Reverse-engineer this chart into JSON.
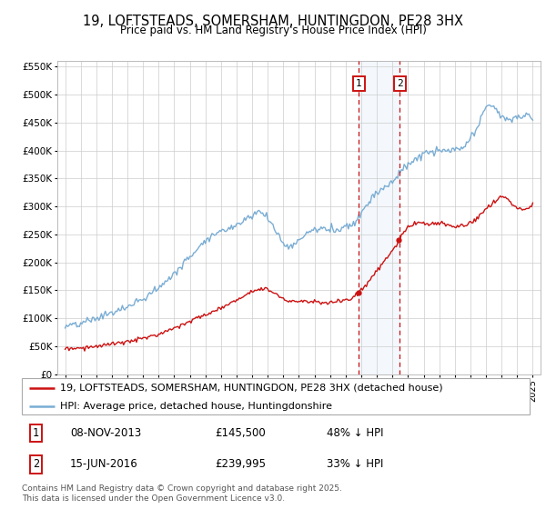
{
  "title": "19, LOFTSTEADS, SOMERSHAM, HUNTINGDON, PE28 3HX",
  "subtitle": "Price paid vs. HM Land Registry's House Price Index (HPI)",
  "ylabel_ticks": [
    "£0",
    "£50K",
    "£100K",
    "£150K",
    "£200K",
    "£250K",
    "£300K",
    "£350K",
    "£400K",
    "£450K",
    "£500K",
    "£550K"
  ],
  "ytick_values": [
    0,
    50000,
    100000,
    150000,
    200000,
    250000,
    300000,
    350000,
    400000,
    450000,
    500000,
    550000
  ],
  "hpi_color": "#7aadd4",
  "price_color": "#cc1111",
  "transaction1_date": "08-NOV-2013",
  "transaction1_price": 145500,
  "transaction1_note": "48% ↓ HPI",
  "transaction2_date": "15-JUN-2016",
  "transaction2_price": 239995,
  "transaction2_note": "33% ↓ HPI",
  "legend_label1": "19, LOFTSTEADS, SOMERSHAM, HUNTINGDON, PE28 3HX (detached house)",
  "legend_label2": "HPI: Average price, detached house, Huntingdonshire",
  "footer": "Contains HM Land Registry data © Crown copyright and database right 2025.\nThis data is licensed under the Open Government Licence v3.0.",
  "background_color": "#ffffff",
  "plot_bg_color": "#ffffff",
  "grid_color": "#cccccc",
  "hpi_years": [
    1995.0,
    1995.08,
    1995.17,
    1995.25,
    1995.33,
    1995.42,
    1995.5,
    1995.58,
    1995.67,
    1995.75,
    1995.83,
    1995.92,
    1996.0,
    1996.08,
    1996.17,
    1996.25,
    1996.33,
    1996.42,
    1996.5,
    1996.58,
    1996.67,
    1996.75,
    1996.83,
    1996.92,
    1997.0,
    1997.08,
    1997.17,
    1997.25,
    1997.33,
    1997.42,
    1997.5,
    1997.58,
    1997.67,
    1997.75,
    1997.83,
    1997.92,
    1998.0,
    1998.08,
    1998.17,
    1998.25,
    1998.33,
    1998.42,
    1998.5,
    1998.58,
    1998.67,
    1998.75,
    1998.83,
    1998.92,
    1999.0,
    1999.08,
    1999.17,
    1999.25,
    1999.33,
    1999.42,
    1999.5,
    1999.58,
    1999.67,
    1999.75,
    1999.83,
    1999.92,
    2000.0,
    2000.08,
    2000.17,
    2000.25,
    2000.33,
    2000.42,
    2000.5,
    2000.58,
    2000.67,
    2000.75,
    2000.83,
    2000.92,
    2001.0,
    2001.08,
    2001.17,
    2001.25,
    2001.33,
    2001.42,
    2001.5,
    2001.58,
    2001.67,
    2001.75,
    2001.83,
    2001.92,
    2002.0,
    2002.08,
    2002.17,
    2002.25,
    2002.33,
    2002.42,
    2002.5,
    2002.58,
    2002.67,
    2002.75,
    2002.83,
    2002.92,
    2003.0,
    2003.08,
    2003.17,
    2003.25,
    2003.33,
    2003.42,
    2003.5,
    2003.58,
    2003.67,
    2003.75,
    2003.83,
    2003.92,
    2004.0,
    2004.08,
    2004.17,
    2004.25,
    2004.33,
    2004.42,
    2004.5,
    2004.58,
    2004.67,
    2004.75,
    2004.83,
    2004.92,
    2005.0,
    2005.08,
    2005.17,
    2005.25,
    2005.33,
    2005.42,
    2005.5,
    2005.58,
    2005.67,
    2005.75,
    2005.83,
    2005.92,
    2006.0,
    2006.08,
    2006.17,
    2006.25,
    2006.33,
    2006.42,
    2006.5,
    2006.58,
    2006.67,
    2006.75,
    2006.83,
    2006.92,
    2007.0,
    2007.08,
    2007.17,
    2007.25,
    2007.33,
    2007.42,
    2007.5,
    2007.58,
    2007.67,
    2007.75,
    2007.83,
    2007.92,
    2008.0,
    2008.08,
    2008.17,
    2008.25,
    2008.33,
    2008.42,
    2008.5,
    2008.58,
    2008.67,
    2008.75,
    2008.83,
    2008.92,
    2009.0,
    2009.08,
    2009.17,
    2009.25,
    2009.33,
    2009.42,
    2009.5,
    2009.58,
    2009.67,
    2009.75,
    2009.83,
    2009.92,
    2010.0,
    2010.08,
    2010.17,
    2010.25,
    2010.33,
    2010.42,
    2010.5,
    2010.58,
    2010.67,
    2010.75,
    2010.83,
    2010.92,
    2011.0,
    2011.08,
    2011.17,
    2011.25,
    2011.33,
    2011.42,
    2011.5,
    2011.58,
    2011.67,
    2011.75,
    2011.83,
    2011.92,
    2012.0,
    2012.08,
    2012.17,
    2012.25,
    2012.33,
    2012.42,
    2012.5,
    2012.58,
    2012.67,
    2012.75,
    2012.83,
    2012.92,
    2013.0,
    2013.08,
    2013.17,
    2013.25,
    2013.33,
    2013.42,
    2013.5,
    2013.58,
    2013.67,
    2013.75,
    2013.83,
    2013.92,
    2014.0,
    2014.08,
    2014.17,
    2014.25,
    2014.33,
    2014.42,
    2014.5,
    2014.58,
    2014.67,
    2014.75,
    2014.83,
    2014.92,
    2015.0,
    2015.08,
    2015.17,
    2015.25,
    2015.33,
    2015.42,
    2015.5,
    2015.58,
    2015.67,
    2015.75,
    2015.83,
    2015.92,
    2016.0,
    2016.08,
    2016.17,
    2016.25,
    2016.33,
    2016.42,
    2016.5,
    2016.58,
    2016.67,
    2016.75,
    2016.83,
    2016.92,
    2017.0,
    2017.08,
    2017.17,
    2017.25,
    2017.33,
    2017.42,
    2017.5,
    2017.58,
    2017.67,
    2017.75,
    2017.83,
    2017.92,
    2018.0,
    2018.08,
    2018.17,
    2018.25,
    2018.33,
    2018.42,
    2018.5,
    2018.58,
    2018.67,
    2018.75,
    2018.83,
    2018.92,
    2019.0,
    2019.08,
    2019.17,
    2019.25,
    2019.33,
    2019.42,
    2019.5,
    2019.58,
    2019.67,
    2019.75,
    2019.83,
    2019.92,
    2020.0,
    2020.08,
    2020.17,
    2020.25,
    2020.33,
    2020.42,
    2020.5,
    2020.58,
    2020.67,
    2020.75,
    2020.83,
    2020.92,
    2021.0,
    2021.08,
    2021.17,
    2021.25,
    2021.33,
    2021.42,
    2021.5,
    2021.58,
    2021.67,
    2021.75,
    2021.83,
    2021.92,
    2022.0,
    2022.08,
    2022.17,
    2022.25,
    2022.33,
    2022.42,
    2022.5,
    2022.58,
    2022.67,
    2022.75,
    2022.83,
    2022.92,
    2023.0,
    2023.08,
    2023.17,
    2023.25,
    2023.33,
    2023.42,
    2023.5,
    2023.58,
    2023.67,
    2023.75,
    2023.83,
    2023.92,
    2024.0,
    2024.08,
    2024.17,
    2024.25,
    2024.33,
    2024.42,
    2024.5,
    2024.58,
    2024.67,
    2024.75,
    2024.83,
    2024.92,
    2025.0
  ],
  "t1_year": 2013.84,
  "t2_year": 2016.46,
  "t1_price": 145500,
  "t2_price": 239995
}
